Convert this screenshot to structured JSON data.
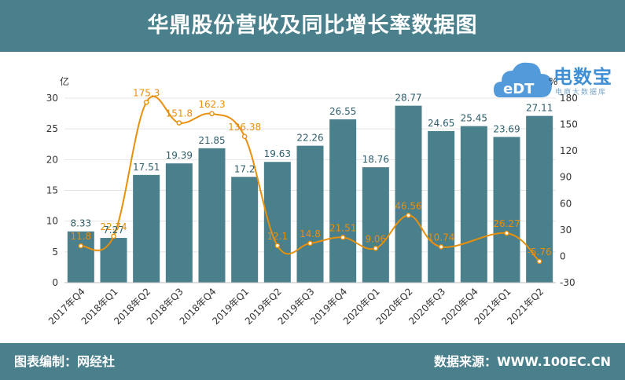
{
  "title": "华鼎股份营收及同比增长率数据图",
  "footer": {
    "editor": "图表编制：网经社",
    "source": "数据来源：WWW.100EC.CN"
  },
  "logo": {
    "cloud_text": "eDT",
    "brand": "电数宝",
    "sub": "电商大数据库"
  },
  "colors": {
    "header": "#4a7f8c",
    "bar": "#4a7f8c",
    "line": "#e8900c",
    "axis_text": "#333333"
  },
  "chart_data": {
    "type": "bar",
    "categories": [
      "2017年Q4",
      "2018年Q1",
      "2018年Q2",
      "2018年Q3",
      "2018年Q4",
      "2019年Q1",
      "2019年Q2",
      "2019年Q3",
      "2019年Q4",
      "2020年Q1",
      "2020年Q2",
      "2020年Q3",
      "2020年Q4",
      "2021年Q1",
      "2021年Q2"
    ],
    "series": [
      {
        "values": [
          8.33,
          7.27,
          17.51,
          19.39,
          21.85,
          17.2,
          19.63,
          22.26,
          26.55,
          18.76,
          28.77,
          24.65,
          25.45,
          23.69,
          27.11
        ],
        "axis": "left",
        "kind": "bar"
      },
      {
        "values": [
          11.8,
          22.74,
          175.3,
          151.8,
          162.3,
          136.38,
          12.1,
          14.8,
          21.51,
          9.06,
          46.56,
          10.74,
          null,
          26.27,
          -5.76
        ],
        "axis": "right",
        "kind": "line"
      }
    ],
    "ylabel": "亿",
    "y2label": "%",
    "ylim": [
      0,
      30
    ],
    "y2lim": [
      -30,
      180
    ],
    "yticks": [
      0,
      5,
      10,
      15,
      20,
      25,
      30
    ],
    "y2ticks": [
      -30,
      0,
      30,
      60,
      90,
      120,
      150,
      180
    ],
    "grid": true
  }
}
